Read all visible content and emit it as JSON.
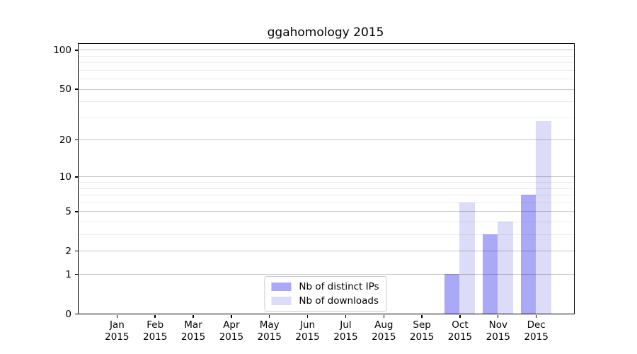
{
  "chart_data": {
    "type": "bar",
    "title": "ggahomology 2015",
    "categories": [
      "Jan",
      "Feb",
      "Mar",
      "Apr",
      "May",
      "Jun",
      "Jul",
      "Aug",
      "Sep",
      "Oct",
      "Nov",
      "Dec"
    ],
    "year_label": "2015",
    "series": [
      {
        "name": "Nb of distinct IPs",
        "color": "#a9a9f7",
        "values": [
          0,
          0,
          0,
          0,
          0,
          0,
          0,
          0,
          0,
          1,
          3,
          7
        ]
      },
      {
        "name": "Nb of downloads",
        "color": "#dcdcf9",
        "values": [
          0,
          0,
          0,
          0,
          0,
          0,
          0,
          0,
          0,
          6,
          4,
          28
        ]
      }
    ],
    "y_axis": {
      "scale": "log10(1+v)",
      "ticks": [
        0,
        1,
        2,
        5,
        10,
        20,
        50,
        100
      ],
      "minor_ticks": [
        3,
        4,
        6,
        7,
        8,
        9,
        30,
        40,
        60,
        70,
        80,
        90
      ],
      "ylim": [
        0,
        111
      ]
    },
    "xlabel": "",
    "ylabel": "",
    "grid": "horizontal",
    "legend_position": "lower center",
    "colors": {
      "major_grid": "rgba(0,0,0,0.22)",
      "minor_grid": "rgba(0,0,0,0.07)",
      "spine": "#000000",
      "background": "#ffffff"
    }
  }
}
